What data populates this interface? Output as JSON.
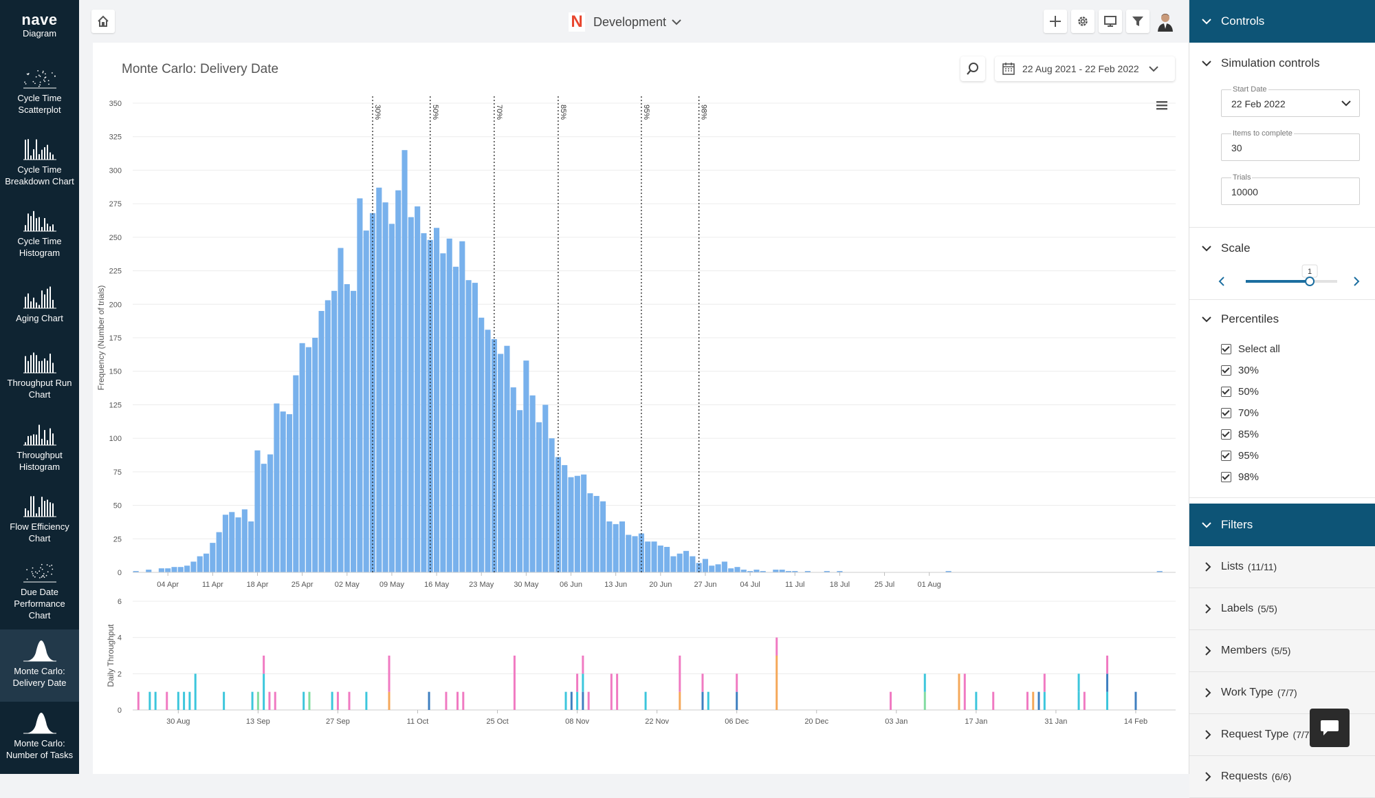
{
  "app": {
    "logo": "nave"
  },
  "sidebar": {
    "items": [
      {
        "label": "Diagram"
      },
      {
        "label": "Cycle Time Scatterplot"
      },
      {
        "label": "Cycle Time Breakdown Chart"
      },
      {
        "label": "Cycle Time Histogram"
      },
      {
        "label": "Aging Chart"
      },
      {
        "label": "Throughput Run Chart"
      },
      {
        "label": "Throughput Histogram"
      },
      {
        "label": "Flow Efficiency Chart"
      },
      {
        "label": "Due Date Performance Chart"
      },
      {
        "label": "Monte Carlo: Delivery Date",
        "active": true
      },
      {
        "label": "Monte Carlo: Number of Tasks"
      }
    ]
  },
  "topbar": {
    "project": "Development",
    "icons": [
      "home-icon",
      "plus-icon",
      "gear-icon",
      "monitor-icon",
      "filter-icon",
      "user-avatar"
    ]
  },
  "main": {
    "title": "Monte Carlo: Delivery Date",
    "date_range": "22 Aug 2021 - 22 Feb 2022"
  },
  "chart_data": [
    {
      "type": "bar",
      "ylabel": "Frequency (Number of trials)",
      "ylim": [
        0,
        350
      ],
      "yticks": [
        0,
        25,
        50,
        75,
        100,
        125,
        150,
        175,
        200,
        225,
        250,
        275,
        300,
        325,
        350
      ],
      "xticks": [
        "04 Apr",
        "11 Apr",
        "18 Apr",
        "25 Apr",
        "02 May",
        "09 May",
        "16 May",
        "23 May",
        "30 May",
        "06 Jun",
        "13 Jun",
        "20 Jun",
        "27 Jun",
        "04 Jul",
        "11 Jul",
        "18 Jul",
        "25 Jul",
        "01 Aug"
      ],
      "x_start": "2022-03-30",
      "values": [
        1,
        0,
        2,
        0,
        3,
        3,
        4,
        4,
        5,
        8,
        12,
        14,
        22,
        30,
        43,
        45,
        41,
        47,
        38,
        91,
        81,
        88,
        126,
        120,
        118,
        147,
        171,
        168,
        175,
        195,
        203,
        210,
        242,
        215,
        210,
        279,
        255,
        268,
        287,
        276,
        260,
        285,
        315,
        265,
        273,
        253,
        248,
        257,
        238,
        249,
        228,
        247,
        218,
        216,
        190,
        181,
        174,
        163,
        169,
        138,
        121,
        158,
        132,
        112,
        125,
        100,
        86,
        80,
        71,
        72,
        73,
        59,
        57,
        53,
        38,
        36,
        38,
        28,
        27,
        29,
        23,
        23,
        20,
        19,
        12,
        14,
        16,
        12,
        7,
        10,
        5,
        6,
        8,
        3,
        4,
        2,
        1,
        2,
        1,
        0,
        2,
        2,
        1,
        1,
        0,
        1,
        0,
        0,
        1,
        0,
        1,
        0,
        0,
        0,
        0,
        0,
        0,
        0,
        0,
        0,
        0,
        0,
        0,
        0,
        0,
        0,
        0,
        1,
        0,
        0,
        0,
        0,
        0,
        0,
        0,
        0,
        0,
        0,
        0,
        0,
        0,
        0,
        0,
        0,
        0,
        0,
        0,
        0,
        0,
        0,
        0,
        0,
        0,
        0,
        0,
        0,
        0,
        0,
        0,
        0,
        1,
        0,
        0
      ],
      "percentiles": [
        {
          "label": "30%",
          "date": "2022-05-06"
        },
        {
          "label": "50%",
          "date": "2022-05-15"
        },
        {
          "label": "70%",
          "date": "2022-05-25"
        },
        {
          "label": "85%",
          "date": "2022-06-04"
        },
        {
          "label": "95%",
          "date": "2022-06-17"
        },
        {
          "label": "98%",
          "date": "2022-06-26"
        }
      ]
    },
    {
      "type": "bar",
      "ylabel": "Daily Throughput",
      "ylim": [
        0,
        6
      ],
      "yticks": [
        0,
        2,
        4,
        6
      ],
      "xticks": [
        "30 Aug",
        "13 Sep",
        "27 Sep",
        "11 Oct",
        "25 Oct",
        "08 Nov",
        "22 Nov",
        "06 Dec",
        "20 Dec",
        "03 Jan",
        "17 Jan",
        "31 Jan",
        "14 Feb"
      ],
      "x_start": "2021-08-22",
      "colors": {
        "pink": "#f07ac2",
        "cyan": "#3cc6dc",
        "blue": "#3f7fc0",
        "green": "#82dca0",
        "orange": "#f5a85a"
      },
      "bars": [
        {
          "day": 1,
          "segments": [
            [
              "pink",
              1
            ]
          ]
        },
        {
          "day": 3,
          "segments": [
            [
              "cyan",
              1
            ]
          ]
        },
        {
          "day": 4,
          "segments": [
            [
              "cyan",
              1
            ]
          ]
        },
        {
          "day": 6,
          "segments": [
            [
              "pink",
              1
            ]
          ]
        },
        {
          "day": 8,
          "segments": [
            [
              "cyan",
              1
            ]
          ]
        },
        {
          "day": 9,
          "segments": [
            [
              "cyan",
              1
            ]
          ]
        },
        {
          "day": 10,
          "segments": [
            [
              "cyan",
              1
            ]
          ]
        },
        {
          "day": 11,
          "segments": [
            [
              "cyan",
              2
            ]
          ]
        },
        {
          "day": 16,
          "segments": [
            [
              "cyan",
              1
            ]
          ]
        },
        {
          "day": 21,
          "segments": [
            [
              "cyan",
              1
            ]
          ]
        },
        {
          "day": 22,
          "segments": [
            [
              "green",
              1
            ]
          ]
        },
        {
          "day": 23,
          "segments": [
            [
              "cyan",
              2
            ],
            [
              "pink",
              1
            ]
          ]
        },
        {
          "day": 24,
          "segments": [
            [
              "pink",
              1
            ]
          ]
        },
        {
          "day": 25,
          "segments": [
            [
              "pink",
              1
            ]
          ]
        },
        {
          "day": 30,
          "segments": [
            [
              "cyan",
              1
            ]
          ]
        },
        {
          "day": 31,
          "segments": [
            [
              "green",
              1
            ]
          ]
        },
        {
          "day": 35,
          "segments": [
            [
              "cyan",
              1
            ]
          ]
        },
        {
          "day": 36,
          "segments": [
            [
              "pink",
              1
            ]
          ]
        },
        {
          "day": 38,
          "segments": [
            [
              "pink",
              1
            ]
          ]
        },
        {
          "day": 41,
          "segments": [
            [
              "cyan",
              1
            ]
          ]
        },
        {
          "day": 45,
          "segments": [
            [
              "orange",
              1
            ],
            [
              "pink",
              2
            ]
          ]
        },
        {
          "day": 52,
          "segments": [
            [
              "blue",
              1
            ]
          ]
        },
        {
          "day": 55,
          "segments": [
            [
              "pink",
              1
            ]
          ]
        },
        {
          "day": 57,
          "segments": [
            [
              "pink",
              1
            ]
          ]
        },
        {
          "day": 58,
          "segments": [
            [
              "pink",
              1
            ]
          ]
        },
        {
          "day": 67,
          "segments": [
            [
              "pink",
              3
            ]
          ]
        },
        {
          "day": 76,
          "segments": [
            [
              "cyan",
              1
            ]
          ]
        },
        {
          "day": 77,
          "segments": [
            [
              "blue",
              1
            ]
          ]
        },
        {
          "day": 78,
          "segments": [
            [
              "cyan",
              1
            ],
            [
              "pink",
              1
            ]
          ]
        },
        {
          "day": 79,
          "segments": [
            [
              "blue",
              1
            ],
            [
              "cyan",
              1
            ],
            [
              "pink",
              1
            ]
          ]
        },
        {
          "day": 80,
          "segments": [
            [
              "pink",
              1
            ]
          ]
        },
        {
          "day": 84,
          "segments": [
            [
              "pink",
              2
            ]
          ]
        },
        {
          "day": 85,
          "segments": [
            [
              "pink",
              2
            ]
          ]
        },
        {
          "day": 90,
          "segments": [
            [
              "cyan",
              1
            ]
          ]
        },
        {
          "day": 96,
          "segments": [
            [
              "orange",
              1
            ],
            [
              "pink",
              2
            ]
          ]
        },
        {
          "day": 100,
          "segments": [
            [
              "blue",
              1
            ],
            [
              "pink",
              1
            ]
          ]
        },
        {
          "day": 101,
          "segments": [
            [
              "cyan",
              1
            ]
          ]
        },
        {
          "day": 106,
          "segments": [
            [
              "blue",
              1
            ],
            [
              "pink",
              1
            ]
          ]
        },
        {
          "day": 113,
          "segments": [
            [
              "orange",
              3
            ],
            [
              "pink",
              1
            ]
          ]
        },
        {
          "day": 133,
          "segments": [
            [
              "pink",
              1
            ]
          ]
        },
        {
          "day": 139,
          "segments": [
            [
              "green",
              1
            ],
            [
              "cyan",
              1
            ]
          ]
        },
        {
          "day": 145,
          "segments": [
            [
              "orange",
              2
            ]
          ]
        },
        {
          "day": 146,
          "segments": [
            [
              "pink",
              2
            ]
          ]
        },
        {
          "day": 148,
          "segments": [
            [
              "cyan",
              1
            ]
          ]
        },
        {
          "day": 151,
          "segments": [
            [
              "pink",
              1
            ]
          ]
        },
        {
          "day": 157,
          "segments": [
            [
              "pink",
              1
            ]
          ]
        },
        {
          "day": 158,
          "segments": [
            [
              "orange",
              1
            ]
          ]
        },
        {
          "day": 159,
          "segments": [
            [
              "blue",
              1
            ]
          ]
        },
        {
          "day": 160,
          "segments": [
            [
              "cyan",
              1
            ],
            [
              "pink",
              1
            ]
          ]
        },
        {
          "day": 166,
          "segments": [
            [
              "cyan",
              1
            ],
            [
              "cyan",
              1
            ]
          ]
        },
        {
          "day": 167,
          "segments": [
            [
              "pink",
              1
            ]
          ]
        },
        {
          "day": 171,
          "segments": [
            [
              "cyan",
              1
            ],
            [
              "blue",
              1
            ],
            [
              "pink",
              1
            ]
          ]
        },
        {
          "day": 176,
          "segments": [
            [
              "blue",
              1
            ]
          ]
        }
      ]
    }
  ],
  "panel": {
    "controls_label": "Controls",
    "simulation": {
      "title": "Simulation controls",
      "start_date_label": "Start Date",
      "start_date": "22 Feb 2022",
      "items_label": "Items to complete",
      "items": "30",
      "trials_label": "Trials",
      "trials": "10000"
    },
    "scale": {
      "title": "Scale",
      "value": "1",
      "level": 0.7
    },
    "percentiles": {
      "title": "Percentiles",
      "options": [
        "Select all",
        "30%",
        "50%",
        "70%",
        "85%",
        "95%",
        "98%"
      ]
    },
    "filters": {
      "title": "Filters",
      "items": [
        {
          "label": "Lists",
          "count": "(11/11)"
        },
        {
          "label": "Labels",
          "count": "(5/5)"
        },
        {
          "label": "Members",
          "count": "(5/5)"
        },
        {
          "label": "Work Type",
          "count": "(7/7)"
        },
        {
          "label": "Request Type",
          "count": "(7/7)"
        },
        {
          "label": "Requests",
          "count": "(6/6)"
        }
      ]
    }
  }
}
